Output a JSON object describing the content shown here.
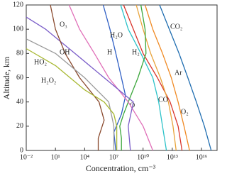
{
  "chart_data": {
    "type": "line",
    "x_label": "Concentration, cm⁻³",
    "y_label": "Altitude, km",
    "xlim": [
      0.01,
      4e+17
    ],
    "ylim": [
      0,
      120
    ],
    "log_x": true,
    "xticks": [
      {
        "value": 0.01,
        "label": "10⁻²"
      },
      {
        "value": 10,
        "label": "10¹"
      },
      {
        "value": 10000,
        "label": "10⁴"
      },
      {
        "value": 10000000,
        "label": "10⁷"
      },
      {
        "value": 10000000000,
        "label": "10¹⁰"
      },
      {
        "value": 10000000000000,
        "label": "10¹³"
      },
      {
        "value": 10000000000000000,
        "label": "10¹⁶"
      }
    ],
    "yticks": [
      0,
      20,
      40,
      60,
      80,
      100,
      120
    ],
    "series": [
      {
        "name": "CO₂",
        "color": "#1f6db0",
        "x": [
          500000000000.0,
          5000000000000.0,
          50000000000000.0,
          400000000000000.0,
          3000000000000000.0,
          2e+16,
          1e+17
        ],
        "y": [
          120,
          100,
          80,
          60,
          40,
          20,
          0
        ]
      },
      {
        "name": "Ar",
        "color": "#f08a24",
        "x": [
          16000000000.0,
          100000000000.0,
          1000000000000.0,
          8000000000000.0,
          40000000000000.0,
          160000000000000.0,
          600000000000000.0
        ],
        "y": [
          120,
          100,
          80,
          60,
          40,
          20,
          0
        ]
      },
      {
        "name": "O₂",
        "color": "#d9342b",
        "x": [
          100000000.0,
          1000000000.0,
          10000000000.0,
          300000000000.0,
          6000000000000.0,
          40000000000000.0,
          100000000000000.0
        ],
        "y": [
          120,
          100,
          80,
          60,
          40,
          20,
          0
        ]
      },
      {
        "name": "CO",
        "color": "#e8a33a",
        "x": [
          2000000000.0,
          10000000000.0,
          60000000000.0,
          600000000000.0,
          4000000000000.0,
          12000000000000.0,
          25000000000000.0
        ],
        "y": [
          120,
          100,
          80,
          60,
          40,
          20,
          0
        ]
      },
      {
        "name": "H₂",
        "color": "#2cc2c9",
        "x": [
          50000000.0,
          300000000.0,
          6000000000.0,
          100000000000.0,
          400000000000.0,
          1000000000000.0,
          2500000000000.0
        ],
        "y": [
          120,
          100,
          80,
          60,
          40,
          20,
          0
        ]
      },
      {
        "name": "H",
        "color": "#2f5fc4",
        "x": [
          800000.0,
          4000000.0,
          16000000.0,
          60000000.0,
          160000000.0,
          60000000.0,
          10000000.0,
          16000000.0
        ],
        "y": [
          120,
          100,
          80,
          60,
          45,
          30,
          15,
          0
        ]
      },
      {
        "name": "O",
        "color": "#3aa63a",
        "x": [
          6000000000.0,
          16000000000.0,
          20000000000.0,
          3000000000.0,
          300000000.0,
          100000000.0,
          40000000.0,
          60000000.0,
          60000000.0
        ],
        "y": [
          120,
          100,
          80,
          60,
          40,
          30,
          20,
          10,
          0
        ]
      },
      {
        "name": "H₂O",
        "color": "#e06fb8",
        "x": [
          250,
          3000,
          100000,
          3000000,
          300000000,
          10000000000,
          100000000000
        ],
        "y": [
          120,
          100,
          80,
          60,
          40,
          20,
          0
        ]
      },
      {
        "name": "O₃",
        "color": "#7a5cc8",
        "x": [
          0.01,
          1,
          1000,
          1000000,
          1000000000,
          300000000,
          500000000
        ],
        "y": [
          110,
          100,
          80,
          60,
          40,
          20,
          0
        ]
      },
      {
        "name": "OH",
        "color": "#8a4a2e",
        "x": [
          3,
          10,
          100,
          3000,
          300000,
          1000000,
          250000,
          250000
        ],
        "y": [
          120,
          100,
          80,
          60,
          40,
          25,
          10,
          0
        ]
      },
      {
        "name": "HO₂",
        "color": "#999999",
        "x": [
          0.01,
          10,
          10000,
          3000000,
          10000000,
          10000000
        ],
        "y": [
          92,
          80,
          60,
          40,
          20,
          0
        ]
      },
      {
        "name": "H₂O₂",
        "color": "#a8b832",
        "x": [
          0.01,
          10,
          10000,
          1000000,
          10000000,
          20000000,
          20000000
        ],
        "y": [
          84,
          70,
          50,
          40,
          30,
          20,
          0
        ]
      }
    ]
  }
}
